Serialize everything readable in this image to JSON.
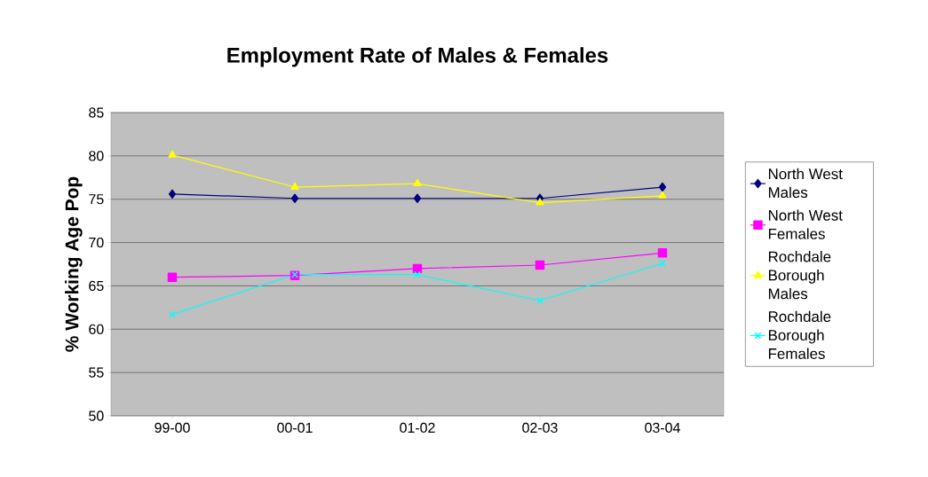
{
  "chart_data": {
    "type": "line",
    "title": "Employment Rate of Males & Females",
    "ylabel": "% Working Age Pop",
    "categories": [
      "99-00",
      "00-01",
      "01-02",
      "02-03",
      "03-04"
    ],
    "series": [
      {
        "name": "North West Males",
        "color": "#000080",
        "marker": "diamond",
        "values": [
          75.6,
          75.1,
          75.1,
          75.1,
          76.4
        ]
      },
      {
        "name": "North West Females",
        "color": "#ff00ff",
        "marker": "square",
        "values": [
          66.0,
          66.2,
          67.0,
          67.4,
          68.8
        ]
      },
      {
        "name": "Rochdale Borough Males",
        "color": "#ffff00",
        "marker": "triangle",
        "values": [
          80.1,
          76.4,
          76.8,
          74.6,
          75.4
        ]
      },
      {
        "name": "Rochdale Borough Females",
        "color": "#00ffff",
        "marker": "cross",
        "values": [
          61.7,
          66.3,
          66.3,
          63.3,
          67.6
        ]
      }
    ],
    "ylim": [
      50,
      85
    ],
    "yticks": [
      50,
      55,
      60,
      65,
      70,
      75,
      80,
      85
    ],
    "grid": "y",
    "legend": "right",
    "line_style": "solid"
  }
}
